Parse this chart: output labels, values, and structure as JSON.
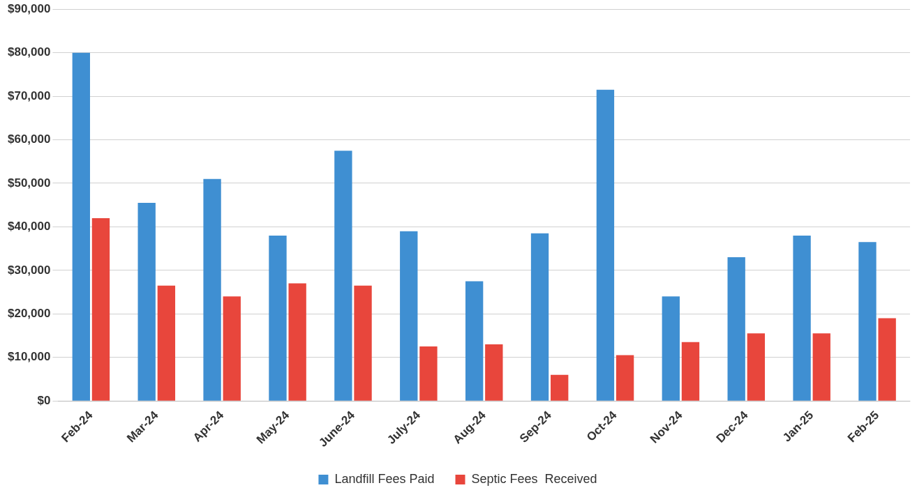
{
  "chart_data": {
    "type": "bar",
    "categories": [
      "Feb-24",
      "Mar-24",
      "Apr-24",
      "May-24",
      "June-24",
      "July-24",
      "Aug-24",
      "Sep-24",
      "Oct-24",
      "Nov-24",
      "Dec-24",
      "Jan-25",
      "Feb-25"
    ],
    "series": [
      {
        "name": "Landfill Fees Paid",
        "color": "#3f8fd2",
        "values": [
          80000,
          45500,
          51000,
          38000,
          57500,
          39000,
          27500,
          38500,
          71500,
          24000,
          33000,
          38000,
          36500
        ]
      },
      {
        "name": "Septic Fees  Received",
        "color": "#e8463c",
        "values": [
          42000,
          26500,
          24000,
          27000,
          26500,
          12500,
          13000,
          6000,
          10500,
          13500,
          15500,
          15500,
          19000
        ]
      }
    ],
    "ylim": [
      0,
      90000
    ],
    "yticks": [
      {
        "value": 0,
        "label": "$0"
      },
      {
        "value": 10000,
        "label": "$10,000"
      },
      {
        "value": 20000,
        "label": "$20,000"
      },
      {
        "value": 30000,
        "label": "$30,000"
      },
      {
        "value": 40000,
        "label": "$40,000"
      },
      {
        "value": 50000,
        "label": "$50,000"
      },
      {
        "value": 60000,
        "label": "$60,000"
      },
      {
        "value": 70000,
        "label": "$70,000"
      },
      {
        "value": 80000,
        "label": "$80,000"
      },
      {
        "value": 90000,
        "label": "$90,000"
      }
    ],
    "grid": "y",
    "legend": "bottom"
  }
}
